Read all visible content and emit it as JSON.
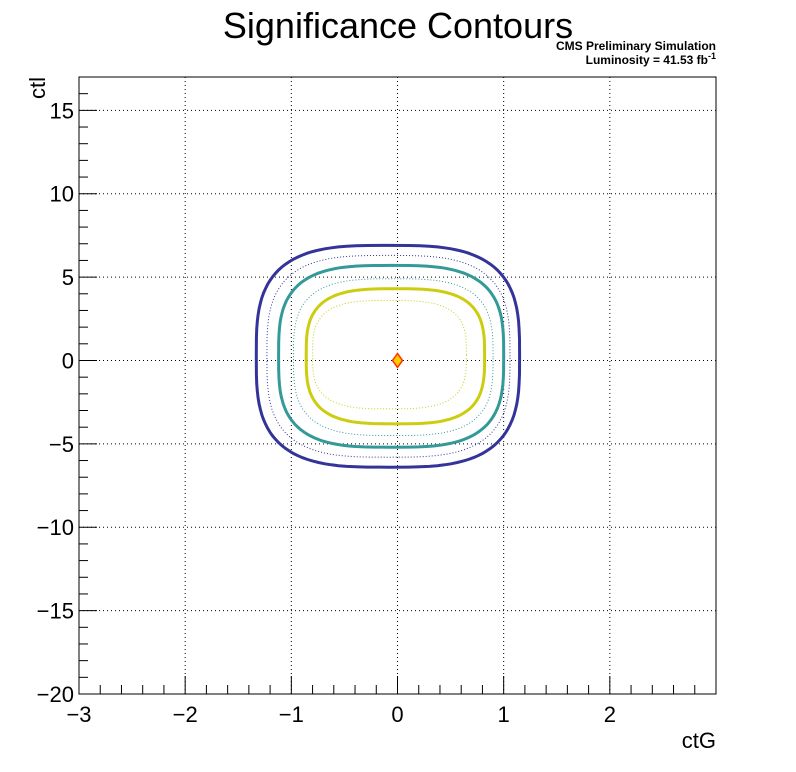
{
  "chart_data": {
    "type": "contour",
    "title": "Significance Contours",
    "xlabel": "ctG",
    "ylabel": "ctl",
    "xlim": [
      -3,
      3
    ],
    "ylim": [
      -20,
      17
    ],
    "x_ticks": [
      -3,
      -2,
      -1,
      0,
      1,
      2
    ],
    "x_tick_labels": [
      "−3",
      "−2",
      "−1",
      "0",
      "1",
      "2"
    ],
    "y_ticks": [
      -20,
      -15,
      -10,
      -5,
      0,
      5,
      10,
      15
    ],
    "y_tick_labels": [
      "−20",
      "−15",
      "−10",
      "−5",
      "0",
      "5",
      "10",
      "15"
    ],
    "grid": true,
    "annotations": {
      "experiment": "CMS Preliminary Simulation",
      "luminosity_prefix": "Luminosity = 41.53 fb",
      "luminosity_sup": "-1"
    },
    "best_fit_point": {
      "x": 0,
      "y": 0,
      "color": "#ff3300"
    },
    "contours": [
      {
        "color": "#333399",
        "style": "solid",
        "x_min": -1.33,
        "x_max": 1.15,
        "y_min": -6.4,
        "y_max": 6.9
      },
      {
        "color": "#333399",
        "style": "dotted",
        "x_min": -1.23,
        "x_max": 1.06,
        "y_min": -5.8,
        "y_max": 6.3
      },
      {
        "color": "#339999",
        "style": "solid",
        "x_min": -1.12,
        "x_max": 1.0,
        "y_min": -5.2,
        "y_max": 5.7
      },
      {
        "color": "#339999",
        "style": "dotted",
        "x_min": -0.98,
        "x_max": 0.9,
        "y_min": -4.5,
        "y_max": 4.9
      },
      {
        "color": "#cccc11",
        "style": "solid",
        "x_min": -0.86,
        "x_max": 0.82,
        "y_min": -3.8,
        "y_max": 4.3
      },
      {
        "color": "#cccc11",
        "style": "dotted",
        "x_min": -0.8,
        "x_max": 0.65,
        "y_min": -2.9,
        "y_max": 3.6
      }
    ]
  }
}
